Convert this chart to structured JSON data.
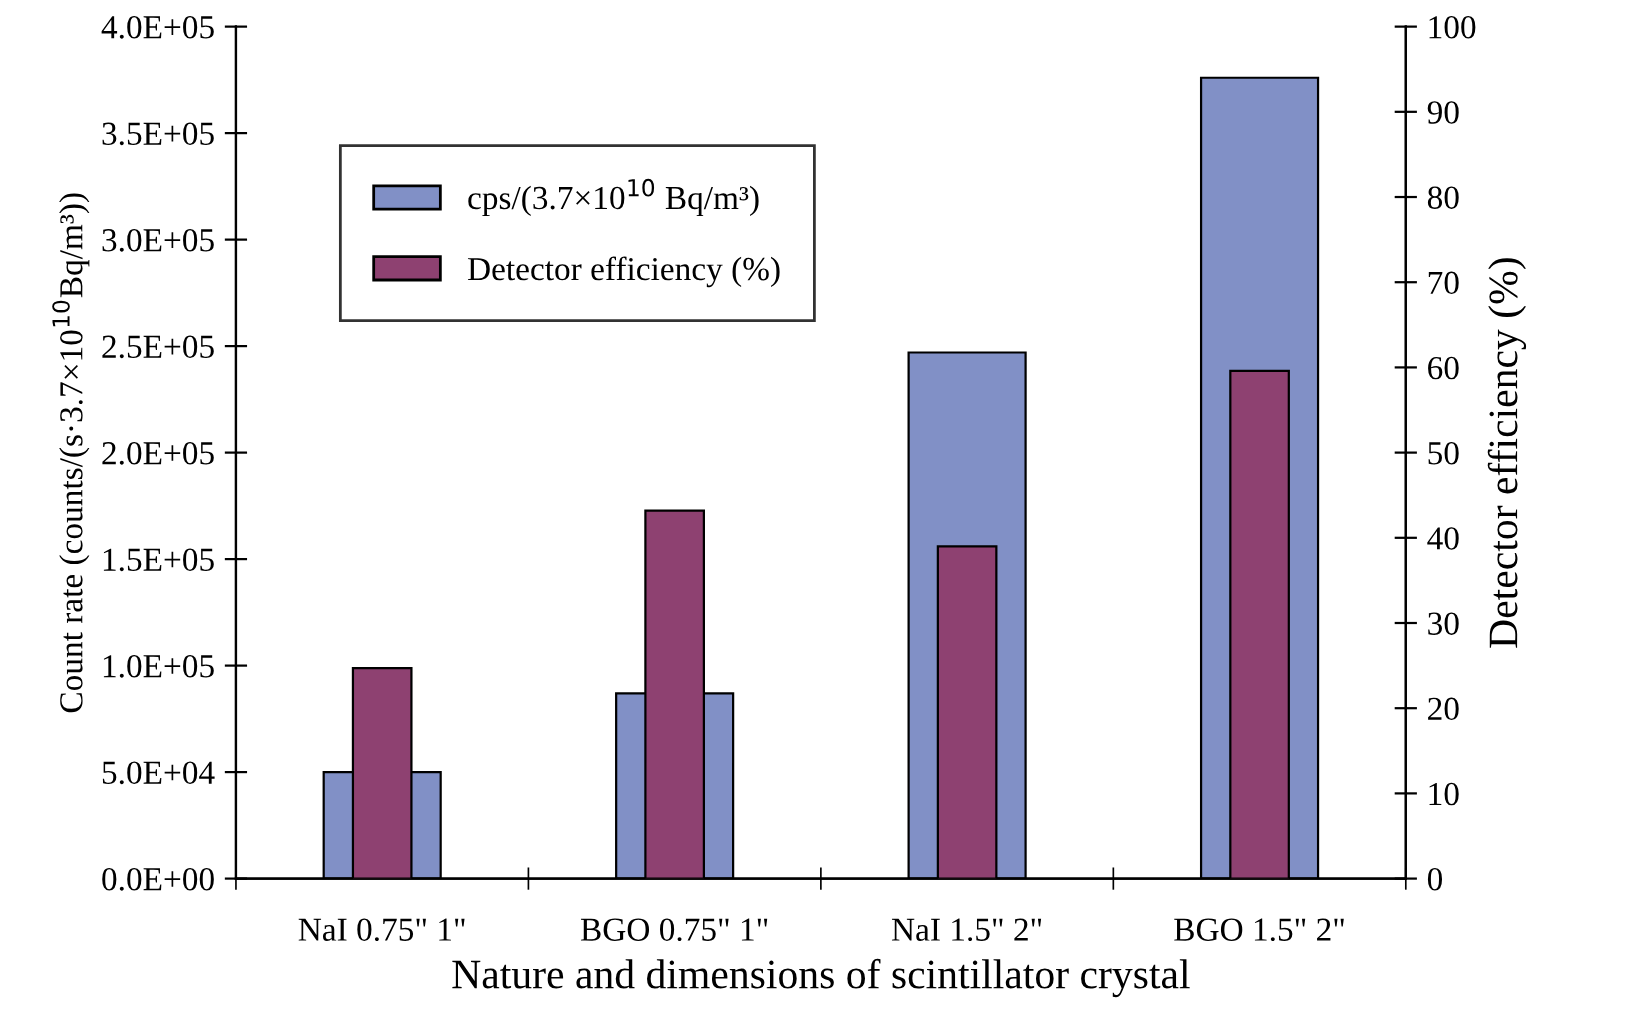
{
  "chart_data": {
    "type": "bar",
    "xlabel": "Nature and dimensions of scintillator crystal",
    "ylabel": "Count rate (counts/(s·3.7×10$^{10}$Bq/m³))",
    "y2label": "Detector efficiency (%)",
    "categories": [
      "NaI 0.75\" 1\"",
      "BGO 0.75\" 1\"",
      "NaI 1.5\" 2\"",
      "BGO 1.5\" 2\""
    ],
    "series": [
      {
        "name": "cps/(3.7×10$^{10}$ Bq/m³)",
        "color": "#8190c6",
        "values": [
          50000,
          87000,
          247000,
          376000
        ]
      },
      {
        "name": "Detector efficiency (%)",
        "color": "#8e4171",
        "axis": "y2",
        "values": [
          24.7,
          43.2,
          39.0,
          59.6
        ]
      }
    ],
    "ylim": [
      0,
      400000
    ],
    "yticks": [
      {
        "value": 0,
        "label": "0.0E+00"
      },
      {
        "value": 50000,
        "label": "5.0E+04"
      },
      {
        "value": 100000,
        "label": "1.0E+05"
      },
      {
        "value": 150000,
        "label": "1.5E+05"
      },
      {
        "value": 200000,
        "label": "2.0E+05"
      },
      {
        "value": 250000,
        "label": "2.5E+05"
      },
      {
        "value": 300000,
        "label": "3.0E+05"
      },
      {
        "value": 350000,
        "label": "3.5E+05"
      },
      {
        "value": 400000,
        "label": "4.0E+05"
      }
    ],
    "y2lim": [
      0,
      100
    ],
    "y2ticks": [
      0,
      10,
      20,
      30,
      40,
      50,
      60,
      70,
      80,
      90,
      100
    ],
    "grid": false,
    "legend": "top left"
  }
}
